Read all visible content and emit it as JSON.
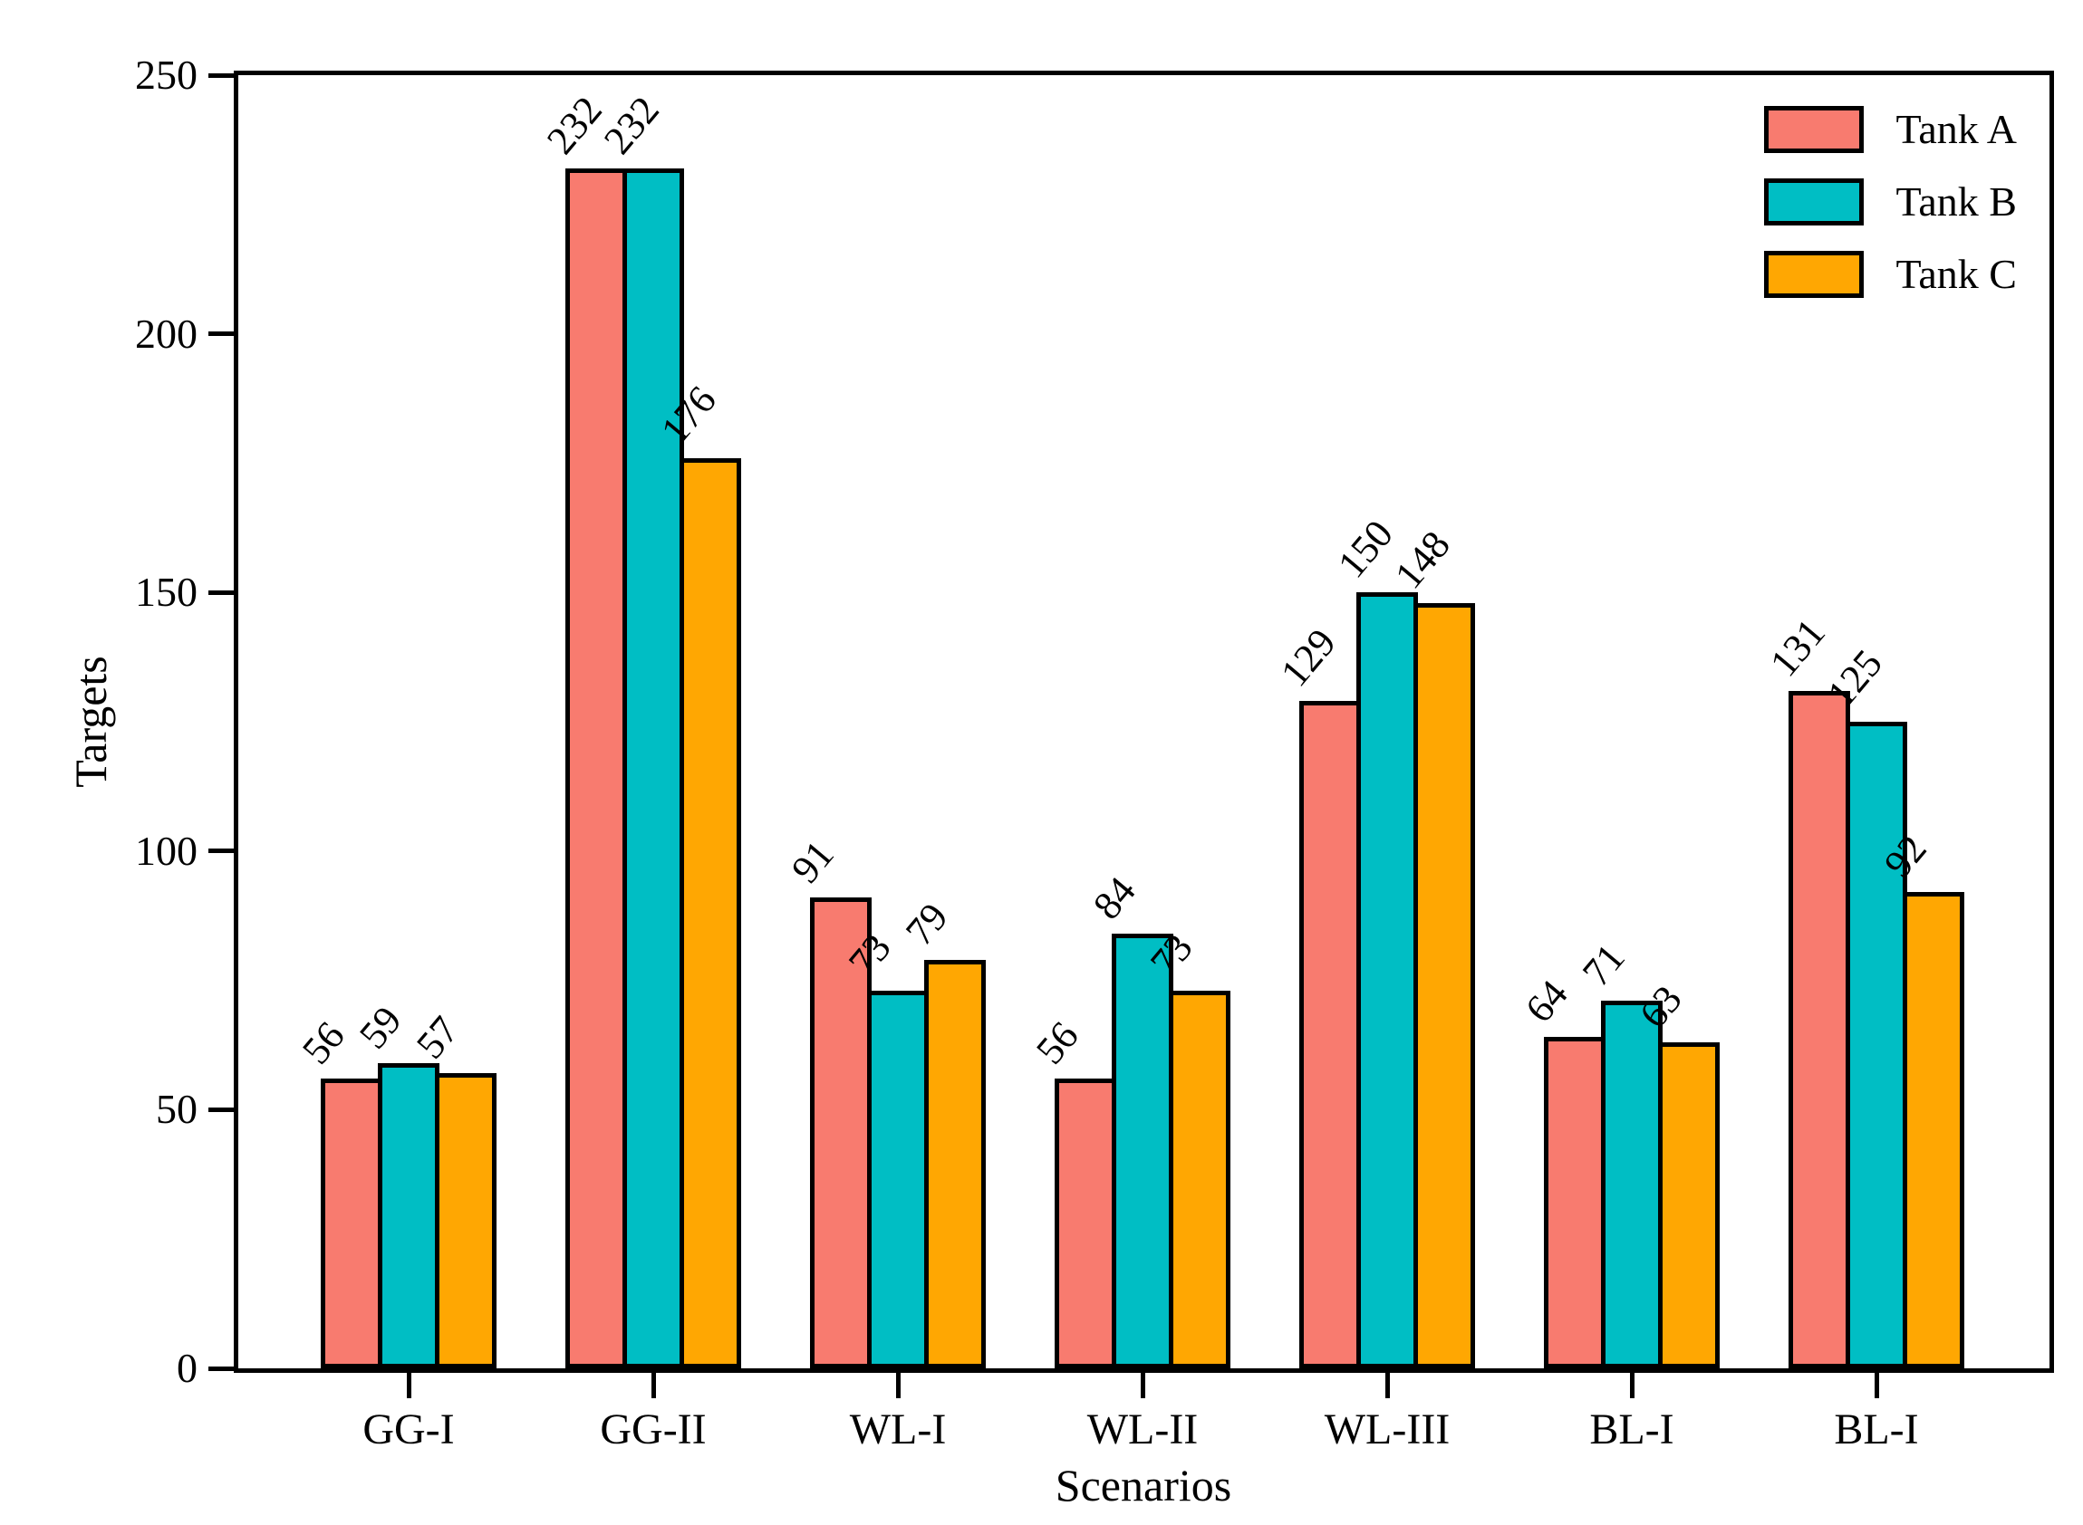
{
  "chart_data": {
    "type": "bar",
    "title": "",
    "xlabel": "Scenarios",
    "ylabel": "Targets",
    "categories": [
      "GG-I",
      "GG-II",
      "WL-I",
      "WL-II",
      "WL-III",
      "BL-I",
      "BL-I"
    ],
    "series": [
      {
        "name": "Tank A",
        "color": "#F87B6F",
        "values": [
          56,
          232,
          91,
          56,
          129,
          64,
          131
        ]
      },
      {
        "name": "Tank B",
        "color": "#00BEC4",
        "values": [
          59,
          232,
          73,
          84,
          150,
          71,
          125
        ]
      },
      {
        "name": "Tank C",
        "color": "#FFA702",
        "values": [
          57,
          176,
          79,
          73,
          148,
          63,
          92
        ]
      }
    ],
    "ylim": [
      0,
      250
    ],
    "yticks": [
      0,
      50,
      100,
      150,
      200,
      250
    ],
    "bar_edge_color": "#000000",
    "value_label_rotation_deg": 50,
    "legend_position": "upper-right",
    "grid": false
  }
}
